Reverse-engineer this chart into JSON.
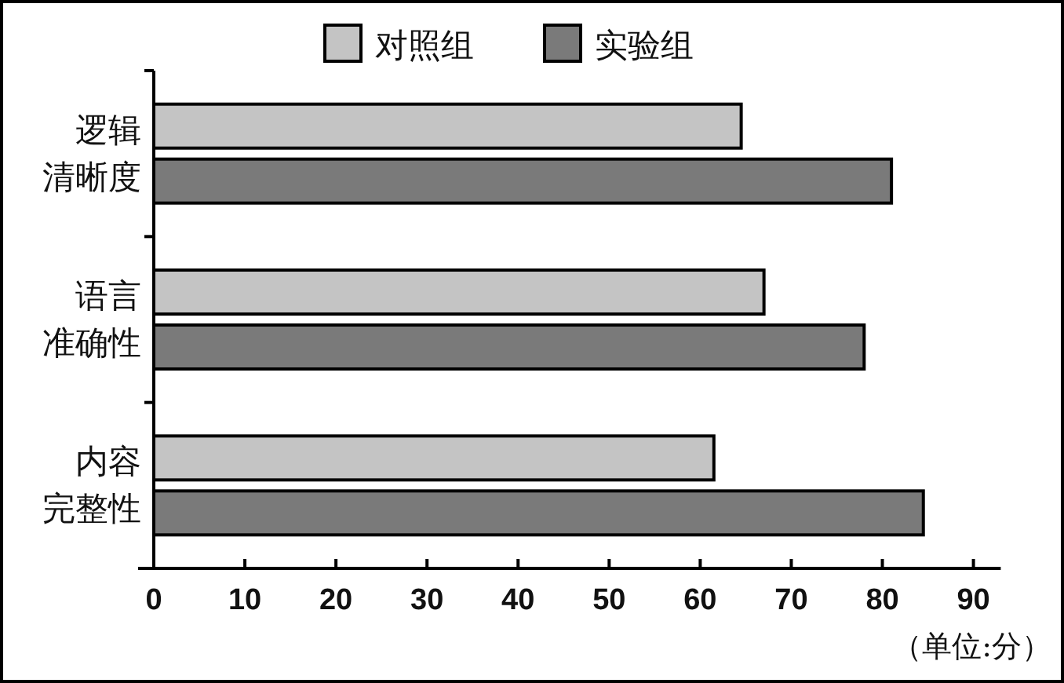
{
  "chart_data": {
    "type": "bar",
    "orientation": "horizontal",
    "categories": [
      "逻辑清晰度",
      "语言准确性",
      "内容完整性"
    ],
    "series": [
      {
        "name": "对照组",
        "color": "#c4c4c4",
        "values": [
          64.5,
          67,
          61.5
        ]
      },
      {
        "name": "实验组",
        "color": "#7a7a7a",
        "values": [
          81,
          78,
          84.5
        ]
      }
    ],
    "xlim": [
      0,
      93
    ],
    "xticks": [
      0,
      10,
      20,
      30,
      40,
      50,
      60,
      70,
      80,
      90
    ],
    "grid": false,
    "legend": "top",
    "annotations": [
      "（单位:分）"
    ]
  }
}
